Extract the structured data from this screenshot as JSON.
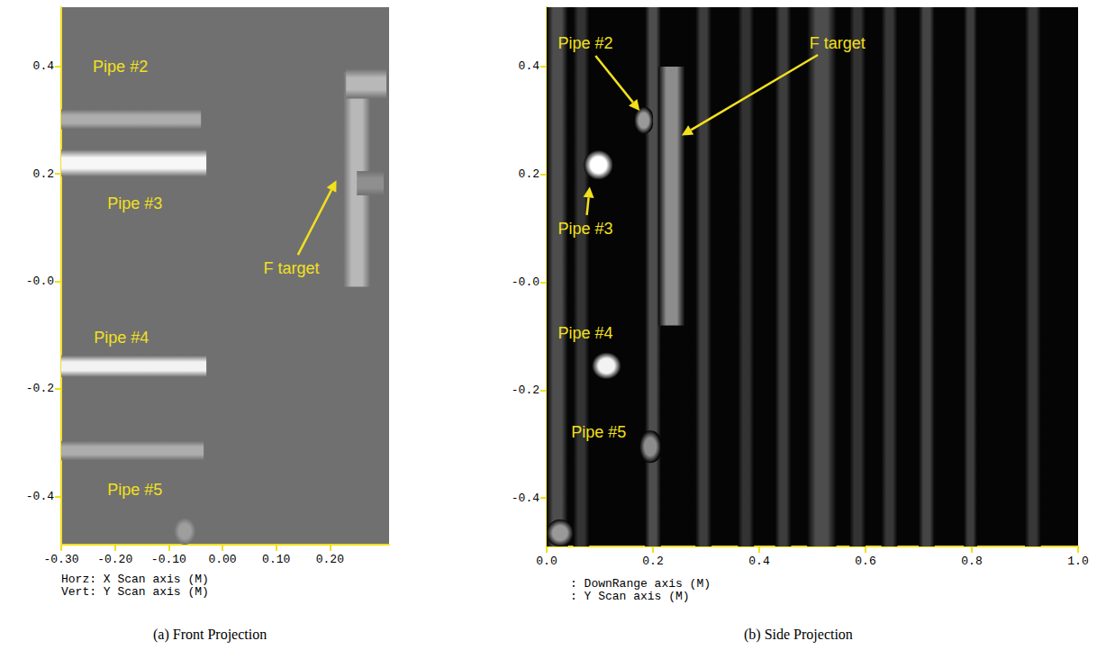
{
  "chart_data": [
    {
      "type": "image",
      "title": "(a) Front Projection",
      "xlabel": "Horz: X Scan axis (M)",
      "ylabel": "Vert: Y Scan axis (M)",
      "xlim": [
        -0.3,
        0.31
      ],
      "ylim": [
        -0.49,
        0.51
      ],
      "xticks": [
        {
          "value": -0.3,
          "label": "-0.30"
        },
        {
          "value": -0.2,
          "label": "-0.20"
        },
        {
          "value": -0.1,
          "label": "-0.10"
        },
        {
          "value": 0,
          "label": "0.00"
        },
        {
          "value": 0.1,
          "label": "0.10"
        },
        {
          "value": 0.2,
          "label": "0.20"
        }
      ],
      "yticks": [
        0.4,
        0.2,
        {
          "value": 0,
          "label": "-0.0"
        },
        -0.2,
        -0.4
      ],
      "intensity_range": [
        0,
        1
      ],
      "background": 0.44,
      "features": [
        {
          "x": [
            -0.3,
            -0.04
          ],
          "y": [
            0.283,
            0.32
          ],
          "intensity": 0.68,
          "marker": "bar"
        },
        {
          "x": [
            -0.3,
            -0.03
          ],
          "y": [
            0.195,
            0.245
          ],
          "intensity": 0.97,
          "marker": "bar"
        },
        {
          "x": [
            -0.3,
            -0.03
          ],
          "y": [
            -0.178,
            -0.138
          ],
          "intensity": 0.95,
          "marker": "bar"
        },
        {
          "x": [
            -0.3,
            -0.035
          ],
          "y": [
            -0.333,
            -0.297
          ],
          "intensity": 0.68,
          "marker": "bar"
        },
        {
          "x": [
            0.225,
            0.275
          ],
          "y": [
            -0.01,
            0.39
          ],
          "intensity": 0.72,
          "marker": "bar"
        },
        {
          "x": [
            0.23,
            0.305
          ],
          "y": [
            0.34,
            0.395
          ],
          "intensity": 0.72,
          "marker": "bar"
        },
        {
          "x": [
            0.25,
            0.3
          ],
          "y": [
            0.16,
            0.205
          ],
          "intensity": 0.56,
          "marker": "bar"
        },
        {
          "x": [
            -0.09,
            -0.05
          ],
          "y": [
            -0.49,
            -0.44
          ],
          "intensity": 0.62,
          "marker": "blob"
        }
      ],
      "annotations": [
        {
          "text": "Pipe #2",
          "at": [
            -0.19,
            0.4
          ]
        },
        {
          "text": "Pipe #3",
          "at": [
            -0.163,
            0.145
          ]
        },
        {
          "text": "Pipe #4",
          "at": [
            -0.188,
            -0.105
          ]
        },
        {
          "text": "Pipe #5",
          "at": [
            -0.163,
            -0.387
          ]
        },
        {
          "text": "F target",
          "at": [
            0.128,
            0.025
          ],
          "to": [
            0.212,
            0.188
          ]
        }
      ]
    },
    {
      "type": "image",
      "title": "(b) Side Projection",
      "xlabel": ": DownRange axis (M)",
      "ylabel": ": Y Scan axis (M)",
      "xlim": [
        0,
        1
      ],
      "ylim": [
        -0.49,
        0.51
      ],
      "xticks": [
        {
          "value": 0,
          "label": "0.0"
        },
        0.2,
        0.4,
        0.6,
        0.8,
        {
          "value": 1,
          "label": "1.0"
        }
      ],
      "yticks": [
        0.4,
        0.2,
        {
          "value": 0,
          "label": "-0.0"
        },
        -0.2,
        -0.4
      ],
      "intensity_range": [
        0,
        1
      ],
      "background": 0.02,
      "features": [
        {
          "x": [
            0.0,
            0.04
          ],
          "y": [
            -0.49,
            0.51
          ],
          "intensity": 0.3,
          "marker": "bar"
        },
        {
          "x": [
            0.05,
            0.08
          ],
          "y": [
            -0.49,
            0.51
          ],
          "intensity": 0.2,
          "marker": "bar"
        },
        {
          "x": [
            0.185,
            0.215
          ],
          "y": [
            -0.49,
            0.51
          ],
          "intensity": 0.3,
          "marker": "bar"
        },
        {
          "x": [
            0.28,
            0.31
          ],
          "y": [
            -0.49,
            0.51
          ],
          "intensity": 0.24,
          "marker": "bar"
        },
        {
          "x": [
            0.36,
            0.39
          ],
          "y": [
            -0.49,
            0.51
          ],
          "intensity": 0.2,
          "marker": "bar"
        },
        {
          "x": [
            0.43,
            0.46
          ],
          "y": [
            -0.49,
            0.51
          ],
          "intensity": 0.24,
          "marker": "bar"
        },
        {
          "x": [
            0.49,
            0.545
          ],
          "y": [
            -0.49,
            0.51
          ],
          "intensity": 0.3,
          "marker": "bar"
        },
        {
          "x": [
            0.57,
            0.6
          ],
          "y": [
            -0.49,
            0.51
          ],
          "intensity": 0.2,
          "marker": "bar"
        },
        {
          "x": [
            0.63,
            0.66
          ],
          "y": [
            -0.49,
            0.51
          ],
          "intensity": 0.22,
          "marker": "bar"
        },
        {
          "x": [
            0.7,
            0.73
          ],
          "y": [
            -0.49,
            0.51
          ],
          "intensity": 0.27,
          "marker": "bar"
        },
        {
          "x": [
            0.785,
            0.81
          ],
          "y": [
            -0.49,
            0.51
          ],
          "intensity": 0.24,
          "marker": "bar"
        },
        {
          "x": [
            0.9,
            0.93
          ],
          "y": [
            -0.49,
            0.51
          ],
          "intensity": 0.22,
          "marker": "bar"
        },
        {
          "x": [
            0.21,
            0.26
          ],
          "y": [
            -0.08,
            0.4
          ],
          "intensity": 0.55,
          "marker": "bar"
        },
        {
          "x": [
            0.165,
            0.2
          ],
          "y": [
            0.275,
            0.325
          ],
          "intensity": 0.6,
          "marker": "blob"
        },
        {
          "x": [
            0.07,
            0.125
          ],
          "y": [
            0.19,
            0.245
          ],
          "intensity": 1.0,
          "marker": "blob"
        },
        {
          "x": [
            0.085,
            0.14
          ],
          "y": [
            -0.18,
            -0.13
          ],
          "intensity": 0.95,
          "marker": "blob"
        },
        {
          "x": [
            0.175,
            0.215
          ],
          "y": [
            -0.335,
            -0.275
          ],
          "intensity": 0.55,
          "marker": "blob"
        },
        {
          "x": [
            0.0,
            0.05
          ],
          "y": [
            -0.49,
            -0.44
          ],
          "intensity": 0.6,
          "marker": "blob"
        }
      ],
      "annotations": [
        {
          "text": "Pipe #2",
          "at": [
            0.073,
            0.443
          ],
          "to": [
            0.175,
            0.318
          ]
        },
        {
          "text": "F target",
          "at": [
            0.547,
            0.443
          ],
          "to": [
            0.254,
            0.272
          ]
        },
        {
          "text": "Pipe #3",
          "at": [
            0.073,
            0.1
          ],
          "to": [
            0.081,
            0.177
          ]
        },
        {
          "text": "Pipe #4",
          "at": [
            0.073,
            -0.095
          ]
        },
        {
          "text": "Pipe #5",
          "at": [
            0.098,
            -0.278
          ]
        }
      ]
    }
  ]
}
